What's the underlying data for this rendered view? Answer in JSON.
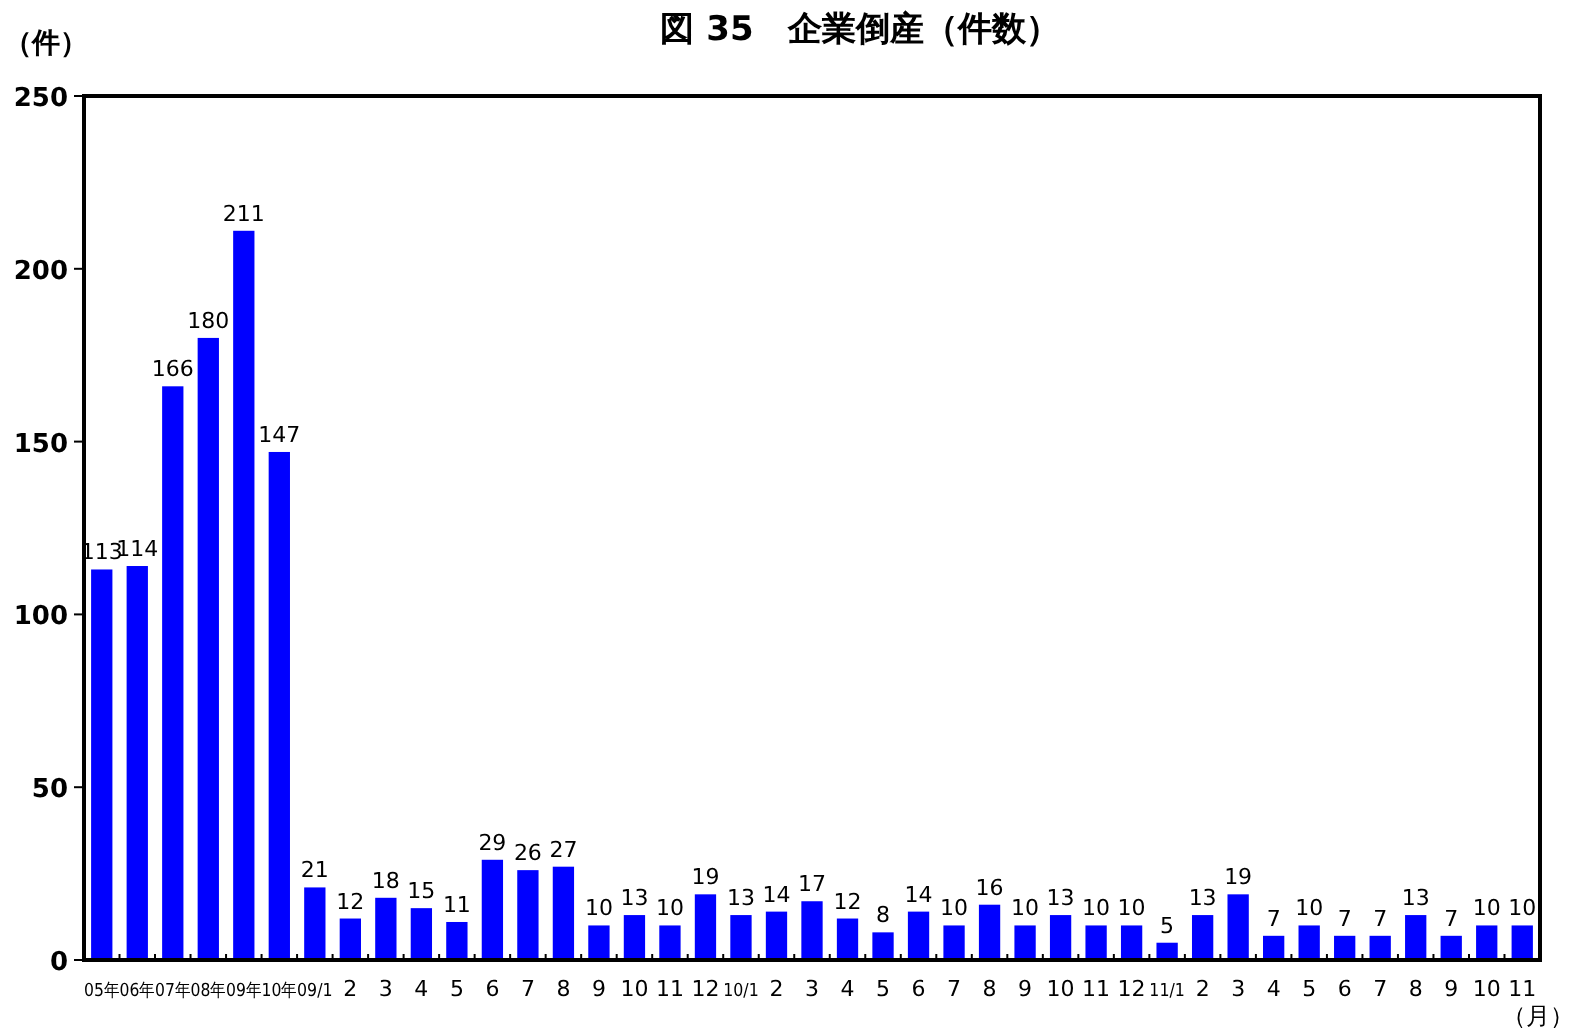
{
  "chart_data": {
    "type": "bar",
    "title": "図 35　企業倒産（件数）",
    "ylabel": "（件）",
    "xlabel": "（月）",
    "categories": [
      "05年",
      "06年",
      "07年",
      "08年",
      "09年",
      "10年",
      "09/1",
      "2",
      "3",
      "4",
      "5",
      "6",
      "7",
      "8",
      "9",
      "10",
      "11",
      "12",
      "10/1",
      "2",
      "3",
      "4",
      "5",
      "6",
      "7",
      "8",
      "9",
      "10",
      "11",
      "12",
      "11/1",
      "2",
      "3",
      "4",
      "5",
      "6",
      "7",
      "8",
      "9",
      "10",
      "11"
    ],
    "values": [
      113,
      114,
      166,
      180,
      211,
      147,
      21,
      12,
      18,
      15,
      11,
      29,
      26,
      27,
      10,
      13,
      10,
      19,
      13,
      14,
      17,
      12,
      8,
      14,
      10,
      16,
      10,
      13,
      10,
      10,
      5,
      13,
      19,
      7,
      10,
      7,
      7,
      13,
      7,
      10,
      10
    ],
    "color": "#0000ff",
    "ylim": [
      0,
      250
    ],
    "yticks": [
      0,
      50,
      100,
      150,
      200,
      250
    ],
    "data_labels": true,
    "grid": false
  }
}
